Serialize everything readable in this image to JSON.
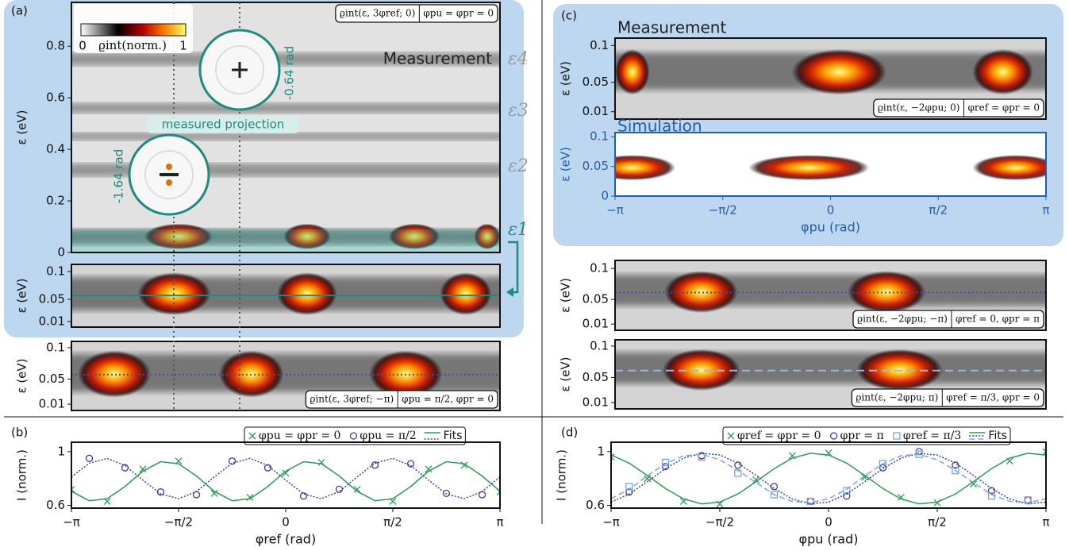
{
  "chart_data": [
    {
      "type": "heatmap",
      "panel_label": "(a)",
      "title": "Measurement",
      "ylabel": "ε (eV)",
      "ylim": [
        0,
        0.97
      ],
      "yticks": [
        0,
        0.2,
        0.4,
        0.6,
        0.8
      ],
      "colorbar": {
        "min_label": "0",
        "label": "ϱint(norm.)",
        "max_label": "1"
      },
      "level_labels": [
        "ε4",
        "ε3",
        "ε2",
        "ε1"
      ],
      "annotations": [
        "-0.64 rad",
        "-1.64 rad",
        "measured projection"
      ],
      "condition": "ϱint(ε, 3φref; 0)",
      "setting": "φpu = φpr = 0"
    },
    {
      "type": "heatmap",
      "ylabel": "ε (eV)",
      "ylim": [
        0,
        0.113
      ],
      "yticks": [
        0.01,
        0.05,
        0.1
      ]
    },
    {
      "type": "heatmap",
      "ylabel": "ε (eV)",
      "ylim": [
        0,
        0.11
      ],
      "yticks": [
        0.01,
        0.05,
        0.1
      ],
      "condition": "ϱint(ε, 3φref; −π)",
      "setting": "φpu = π/2, φpr = 0"
    },
    {
      "type": "line",
      "panel_label": "(b)",
      "xlabel": "φref (rad)",
      "ylabel": "I (norm.)",
      "xlim": [
        -3.1416,
        3.1416
      ],
      "xticks": [
        {
          "value": -3.1416,
          "label": "−π"
        },
        {
          "value": -1.5708,
          "label": "−π/2"
        },
        0,
        {
          "value": 1.5708,
          "label": "π/2"
        },
        {
          "value": 3.1416,
          "label": "π"
        }
      ],
      "ylim": [
        0.58,
        1.07
      ],
      "yticks": [
        0.6,
        1
      ],
      "fits_label": "Fits",
      "series": [
        {
          "name": "φpu = φpr = 0",
          "color": "#2e9a5a",
          "marker": "x",
          "x": [
            -3.142,
            -2.618,
            -2.094,
            -1.571,
            -1.047,
            -0.524,
            0,
            0.524,
            1.047,
            1.571,
            2.094,
            2.618,
            3.142
          ],
          "values": [
            0.72,
            0.63,
            0.87,
            0.93,
            0.69,
            0.66,
            0.84,
            0.92,
            0.72,
            0.63,
            0.87,
            0.9,
            0.7
          ]
        },
        {
          "name": "φpu = π/2",
          "color": "#3b3f9a",
          "marker": "o",
          "x": [
            -2.88,
            -2.356,
            -1.833,
            -1.309,
            -0.785,
            -0.262,
            0.262,
            0.785,
            1.309,
            1.833,
            2.356,
            2.88
          ],
          "values": [
            0.95,
            0.88,
            0.7,
            0.68,
            0.93,
            0.88,
            0.67,
            0.72,
            0.9,
            0.91,
            0.69,
            0.68
          ]
        },
        {
          "color": "#2e9a5a",
          "dash": "solid",
          "x": [
            -3.142,
            -2.88,
            -2.618,
            -2.356,
            -2.094,
            -1.833,
            -1.571,
            -1.309,
            -1.047,
            -0.785,
            -0.524,
            -0.262,
            0,
            0.262,
            0.524,
            0.785,
            1.047,
            1.309,
            1.571,
            1.833,
            2.094,
            2.356,
            2.618,
            2.88,
            3.142
          ],
          "values": [
            0.705,
            0.635,
            0.65,
            0.741,
            0.855,
            0.925,
            0.91,
            0.819,
            0.705,
            0.635,
            0.65,
            0.741,
            0.855,
            0.925,
            0.91,
            0.819,
            0.705,
            0.635,
            0.65,
            0.741,
            0.855,
            0.925,
            0.91,
            0.819,
            0.705
          ]
        },
        {
          "color": "#3b3f9a",
          "dash": "dotted",
          "x": [
            -3.142,
            -2.88,
            -2.618,
            -2.356,
            -2.094,
            -1.833,
            -1.571,
            -1.309,
            -1.047,
            -0.785,
            -0.524,
            -0.262,
            0,
            0.262,
            0.524,
            0.785,
            1.047,
            1.309,
            1.571,
            1.833,
            2.094,
            2.356,
            2.618,
            2.88,
            3.142
          ],
          "values": [
            0.812,
            0.914,
            0.95,
            0.897,
            0.788,
            0.686,
            0.65,
            0.703,
            0.812,
            0.914,
            0.95,
            0.897,
            0.788,
            0.686,
            0.65,
            0.703,
            0.812,
            0.914,
            0.95,
            0.897,
            0.788,
            0.686,
            0.65,
            0.703,
            0.812
          ]
        }
      ]
    },
    {
      "type": "heatmap",
      "panel_label": "(c)",
      "title": "Measurement",
      "ylabel": "ε (eV)",
      "ylim": [
        0,
        0.11
      ],
      "yticks": [
        0.01,
        0.05,
        0.1
      ],
      "condition": "ϱint(ε, −2φpu; 0)",
      "setting": "φref = φpr = 0"
    },
    {
      "type": "heatmap",
      "title": "Simulation",
      "ylabel": "ε (eV)",
      "ylim": [
        0,
        0.107
      ],
      "yticks": [
        0,
        0.05,
        0.1
      ],
      "xlabel": "φpu (rad)",
      "xlim": [
        -3.1416,
        3.1416
      ],
      "xticks": [
        {
          "value": -3.1416,
          "label": "−π"
        },
        {
          "value": -1.5708,
          "label": "−π/2"
        },
        0,
        {
          "value": 1.5708,
          "label": "π/2"
        },
        {
          "value": 3.1416,
          "label": "π"
        }
      ]
    },
    {
      "type": "heatmap",
      "ylabel": "ε (eV)",
      "ylim": [
        0,
        0.113
      ],
      "yticks": [
        0.01,
        0.05,
        0.1
      ],
      "condition": "ϱint(ε, −2φpu; −π)",
      "setting": "φref = 0, φpr = π"
    },
    {
      "type": "heatmap",
      "ylabel": "ε (eV)",
      "ylim": [
        0,
        0.11
      ],
      "yticks": [
        0.01,
        0.05,
        0.1
      ],
      "condition": "ϱint(ε, −2φpu; π)",
      "setting": "φref = π/3, φpr = 0"
    },
    {
      "type": "line",
      "panel_label": "(d)",
      "xlabel": "φpu (rad)",
      "ylabel": "I (norm.)",
      "xlim": [
        -3.1416,
        3.1416
      ],
      "xticks": [
        {
          "value": -3.1416,
          "label": "−π"
        },
        {
          "value": -1.5708,
          "label": "−π/2"
        },
        0,
        {
          "value": 1.5708,
          "label": "π/2"
        },
        {
          "value": 3.1416,
          "label": "π"
        }
      ],
      "ylim": [
        0.58,
        1.07
      ],
      "yticks": [
        0.6,
        1
      ],
      "fits_label": "Fits",
      "series": [
        {
          "name": "φref = φpr = 0",
          "color": "#2e9a5a",
          "marker": "x",
          "x": [
            -3.142,
            -2.618,
            -2.094,
            -1.571,
            -1.047,
            -0.524,
            0,
            0.524,
            1.047,
            1.571,
            2.094,
            2.618,
            3.142
          ],
          "values": [
            0.96,
            0.8,
            0.63,
            0.61,
            0.79,
            0.97,
            0.99,
            0.81,
            0.66,
            0.62,
            0.76,
            0.93,
            1.0
          ]
        },
        {
          "name": "φpr = π",
          "color": "#3b3f9a",
          "marker": "o",
          "x": [
            -2.88,
            -2.356,
            -1.833,
            -1.309,
            -0.785,
            -0.262,
            0.262,
            0.785,
            1.309,
            1.833,
            2.356,
            2.88
          ],
          "values": [
            0.7,
            0.89,
            0.97,
            0.9,
            0.74,
            0.63,
            0.67,
            0.88,
            1.0,
            0.9,
            0.71,
            0.64
          ]
        },
        {
          "name": "φref = π/3",
          "color": "#7fa3d8",
          "marker": "s",
          "x": [
            -2.88,
            -2.356,
            -1.833,
            -1.309,
            -0.785,
            -0.262,
            0.262,
            0.785,
            1.309,
            1.833,
            2.356,
            2.88
          ],
          "values": [
            0.74,
            0.92,
            0.96,
            0.84,
            0.68,
            0.63,
            0.71,
            0.91,
            0.98,
            0.86,
            0.67,
            0.64
          ]
        },
        {
          "color": "#2e9a5a",
          "dash": "solid",
          "x": [
            -3.142,
            -2.88,
            -2.618,
            -2.356,
            -2.094,
            -1.833,
            -1.571,
            -1.309,
            -1.047,
            -0.785,
            -0.524,
            -0.262,
            0,
            0.262,
            0.524,
            0.785,
            1.047,
            1.309,
            1.571,
            1.833,
            2.094,
            2.356,
            2.618,
            2.88,
            3.142
          ],
          "values": [
            0.975,
            0.915,
            0.823,
            0.726,
            0.648,
            0.612,
            0.625,
            0.685,
            0.777,
            0.874,
            0.952,
            0.988,
            0.975,
            0.915,
            0.823,
            0.726,
            0.648,
            0.612,
            0.625,
            0.685,
            0.777,
            0.874,
            0.952,
            0.988,
            0.975
          ]
        },
        {
          "color": "#3b3f9a",
          "dash": "dotted",
          "x": [
            -3.142,
            -2.88,
            -2.618,
            -2.356,
            -2.094,
            -1.833,
            -1.571,
            -1.309,
            -1.047,
            -0.785,
            -0.524,
            -0.262,
            0,
            0.262,
            0.524,
            0.785,
            1.047,
            1.309,
            1.571,
            1.833,
            2.094,
            2.356,
            2.618,
            2.88,
            3.142
          ],
          "values": [
            0.625,
            0.685,
            0.777,
            0.874,
            0.952,
            0.988,
            0.975,
            0.915,
            0.823,
            0.726,
            0.648,
            0.612,
            0.625,
            0.685,
            0.777,
            0.874,
            0.952,
            0.988,
            0.975,
            0.915,
            0.823,
            0.726,
            0.648,
            0.612,
            0.625
          ]
        },
        {
          "color": "#7fa3d8",
          "dash": "dashed",
          "x": [
            -3.142,
            -2.88,
            -2.618,
            -2.356,
            -2.094,
            -1.833,
            -1.571,
            -1.309,
            -1.047,
            -0.785,
            -0.524,
            -0.262,
            0,
            0.262,
            0.524,
            0.785,
            1.047,
            1.309,
            1.571,
            1.833,
            2.094,
            2.356,
            2.618,
            2.88,
            3.142
          ],
          "values": [
            0.65,
            0.72,
            0.82,
            0.91,
            0.97,
            0.98,
            0.94,
            0.86,
            0.77,
            0.68,
            0.63,
            0.62,
            0.65,
            0.72,
            0.82,
            0.91,
            0.97,
            0.98,
            0.94,
            0.86,
            0.77,
            0.68,
            0.63,
            0.62,
            0.65
          ]
        }
      ]
    }
  ]
}
